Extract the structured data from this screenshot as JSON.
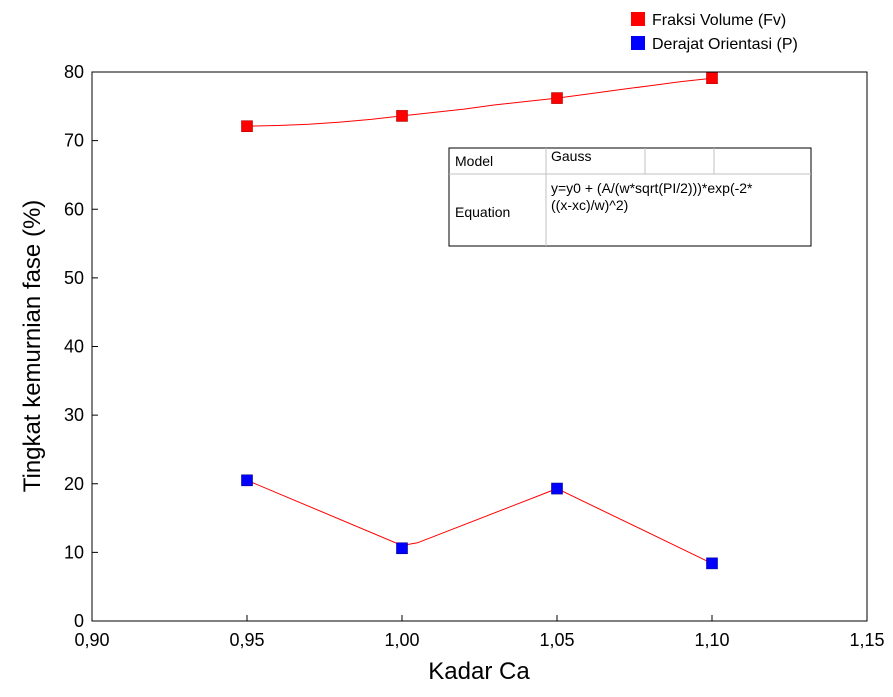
{
  "chart_data": {
    "type": "scatter",
    "xlabel": "Kadar Ca",
    "ylabel": "Tingkat kemurnian fase (%)",
    "xlim": [
      0.9,
      1.15
    ],
    "ylim": [
      0,
      80
    ],
    "x_ticks": [
      "0,90",
      "0,95",
      "1,00",
      "1,05",
      "1,10",
      "1,15"
    ],
    "y_ticks": [
      "0",
      "10",
      "20",
      "30",
      "40",
      "50",
      "60",
      "70",
      "80"
    ],
    "x_tick_values": [
      0.9,
      0.95,
      1.0,
      1.05,
      1.1,
      1.15
    ],
    "y_tick_values": [
      0,
      10,
      20,
      30,
      40,
      50,
      60,
      70,
      80
    ],
    "grid": false,
    "legend_position": "top-right",
    "fit_line_color": "#ff0000",
    "series": [
      {
        "name": "Fraksi Volume (Fv)",
        "color": "#ff0000",
        "x": [
          0.95,
          1.0,
          1.05,
          1.1
        ],
        "y": [
          72.1,
          73.6,
          76.2,
          79.1
        ],
        "fit_x": [
          0.95,
          0.96,
          0.97,
          0.98,
          0.99,
          1.0,
          1.01,
          1.02,
          1.03,
          1.04,
          1.05,
          1.06,
          1.07,
          1.08,
          1.09,
          1.1
        ],
        "fit_y": [
          72.1,
          72.2,
          72.4,
          72.7,
          73.1,
          73.6,
          74.1,
          74.6,
          75.2,
          75.7,
          76.2,
          76.8,
          77.4,
          78.0,
          78.6,
          79.1
        ]
      },
      {
        "name": "Derajat Orientasi (P)",
        "color": "#0000ff",
        "x": [
          0.95,
          1.0,
          1.05,
          1.1
        ],
        "y": [
          20.5,
          10.6,
          19.3,
          8.4
        ],
        "fit_x": [
          0.95,
          1.0,
          1.005,
          1.05,
          1.1
        ],
        "fit_y": [
          20.5,
          11.0,
          11.4,
          19.3,
          8.4
        ]
      }
    ],
    "info_box": {
      "model_label": "Model",
      "model_value": "Gauss",
      "equation_label": "Equation",
      "equation_line1": "y=y0 + (A/(w*sqrt(PI/2)))*exp(-2*",
      "equation_line2": "((x-xc)/w)^2)"
    }
  }
}
